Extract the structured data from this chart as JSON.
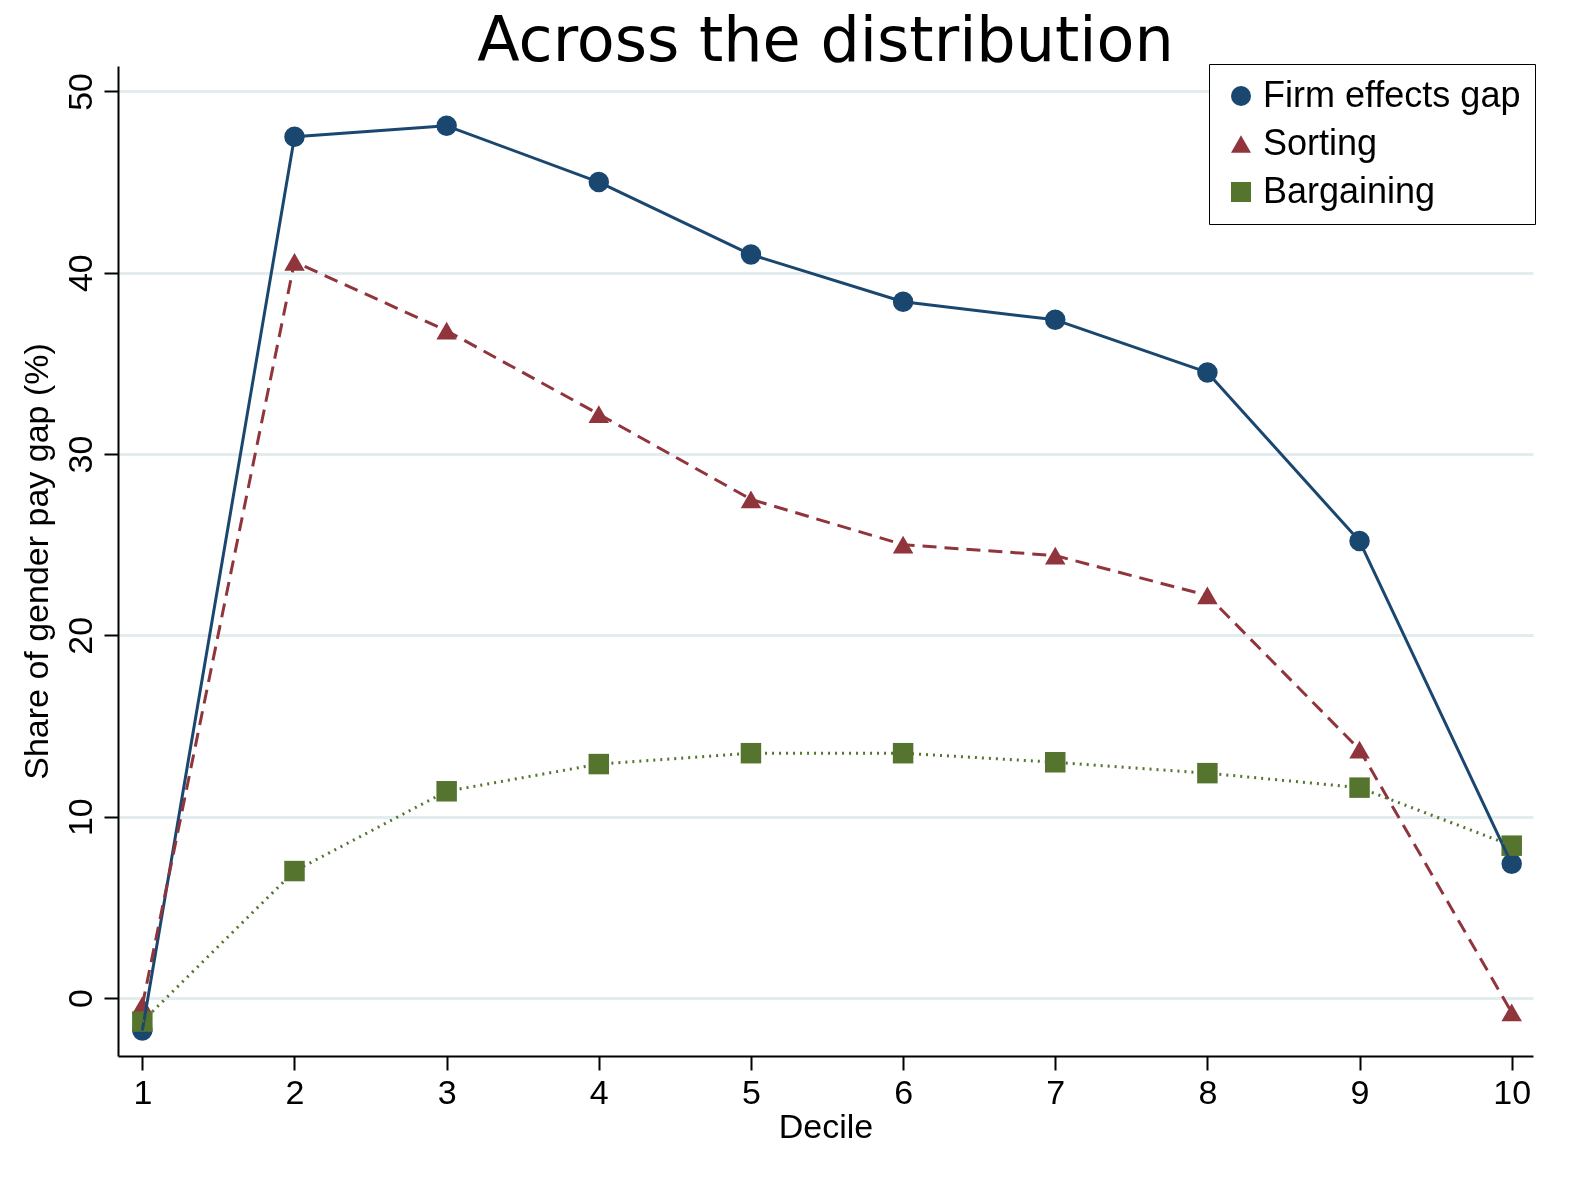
{
  "chart_data": {
    "type": "line",
    "title": "Across the distribution",
    "xlabel": "Decile",
    "ylabel": "Share of gender pay gap (%)",
    "x": [
      1,
      2,
      3,
      4,
      5,
      6,
      7,
      8,
      9,
      10
    ],
    "xlim": [
      0.84,
      10.14
    ],
    "xticks": [
      1,
      2,
      3,
      4,
      5,
      6,
      7,
      8,
      9,
      10
    ],
    "ylim": [
      -3.2,
      51.4
    ],
    "yticks": [
      0,
      10,
      20,
      30,
      40,
      50
    ],
    "grid": "y",
    "legend": "top right",
    "series": [
      {
        "name": "Firm effects gap",
        "color": "#1a476f",
        "marker": "circle",
        "line_style": "solid",
        "values": [
          -1.8,
          47.5,
          48.1,
          45.0,
          41.0,
          38.4,
          37.4,
          34.5,
          25.2,
          7.4
        ]
      },
      {
        "name": "Sorting",
        "color": "#90353b",
        "marker": "triangle",
        "line_style": "dashed",
        "values": [
          -0.4,
          40.6,
          36.8,
          32.2,
          27.5,
          25.0,
          24.4,
          22.2,
          13.7,
          -0.8
        ]
      },
      {
        "name": "Bargaining",
        "color": "#55752f",
        "marker": "square",
        "line_style": "dotted",
        "values": [
          -1.3,
          7.0,
          11.4,
          12.9,
          13.5,
          13.5,
          13.0,
          12.4,
          11.6,
          8.4
        ]
      }
    ]
  }
}
